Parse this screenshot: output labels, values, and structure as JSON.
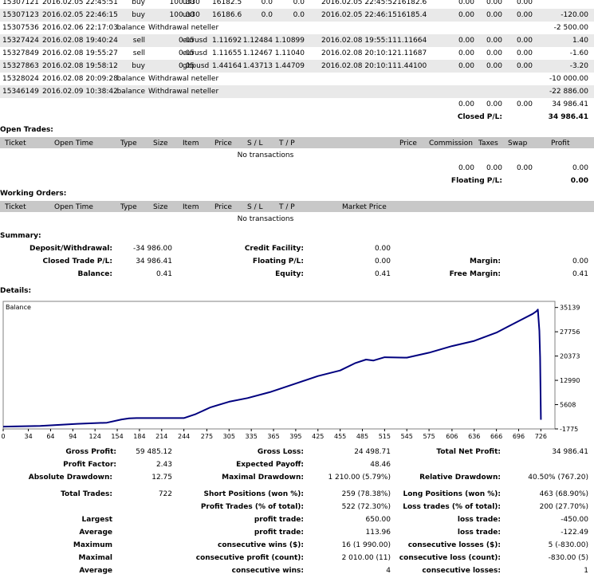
{
  "closed_rows": [
    {
      "ticket": "15307121",
      "open_time": "2016.02.05 22:45:51",
      "type": "buy",
      "size": "100.00",
      "item": "us30",
      "price": "16182.5",
      "sl": "0.0",
      "tp": "0.0",
      "close_time": "2016.02.05 22:45:52",
      "close_price": "16182.6",
      "commission": "0.00",
      "taxes": "0.00",
      "swap": "0.00",
      "profit": "",
      "shade": false
    },
    {
      "ticket": "15307123",
      "open_time": "2016.02.05 22:46:15",
      "type": "buy",
      "size": "100.00",
      "item": "us30",
      "price": "16186.6",
      "sl": "0.0",
      "tp": "0.0",
      "close_time": "2016.02.05 22:46:15",
      "close_price": "16185.4",
      "commission": "0.00",
      "taxes": "0.00",
      "swap": "0.00",
      "profit": "-120.00",
      "shade": true
    },
    {
      "ticket": "15307536",
      "open_time": "2016.02.06 22:17:03",
      "type": "balance",
      "size": "Withdrawal neteller",
      "item": "",
      "price": "",
      "sl": "",
      "tp": "",
      "close_time": "",
      "close_price": "",
      "commission": "",
      "taxes": "",
      "swap": "",
      "profit": "-2 500.00",
      "shade": false
    },
    {
      "ticket": "15327424",
      "open_time": "2016.02.08 19:40:24",
      "type": "sell",
      "size": "0.05",
      "item": "eurusd",
      "price": "1.11692",
      "sl": "1.12484",
      "tp": "1.10899",
      "close_time": "2016.02.08 19:55:11",
      "close_price": "1.11664",
      "commission": "0.00",
      "taxes": "0.00",
      "swap": "0.00",
      "profit": "1.40",
      "shade": true
    },
    {
      "ticket": "15327849",
      "open_time": "2016.02.08 19:55:27",
      "type": "sell",
      "size": "0.05",
      "item": "eurusd",
      "price": "1.11655",
      "sl": "1.12467",
      "tp": "1.11040",
      "close_time": "2016.02.08 20:10:12",
      "close_price": "1.11687",
      "commission": "0.00",
      "taxes": "0.00",
      "swap": "0.00",
      "profit": "-1.60",
      "shade": false
    },
    {
      "ticket": "15327863",
      "open_time": "2016.02.08 19:58:12",
      "type": "buy",
      "size": "0.05",
      "item": "gbpusd",
      "price": "1.44164",
      "sl": "1.43713",
      "tp": "1.44709",
      "close_time": "2016.02.08 20:10:11",
      "close_price": "1.44100",
      "commission": "0.00",
      "taxes": "0.00",
      "swap": "0.00",
      "profit": "-3.20",
      "shade": true
    },
    {
      "ticket": "15328024",
      "open_time": "2016.02.08 20:09:28",
      "type": "balance",
      "size": "Withdrawal neteller",
      "item": "",
      "price": "",
      "sl": "",
      "tp": "",
      "close_time": "",
      "close_price": "",
      "commission": "",
      "taxes": "",
      "swap": "",
      "profit": "-10 000.00",
      "shade": false
    },
    {
      "ticket": "15346149",
      "open_time": "2016.02.09 10:38:42",
      "type": "balance",
      "size": "Withdrawal neteller",
      "item": "",
      "price": "",
      "sl": "",
      "tp": "",
      "close_time": "",
      "close_price": "",
      "commission": "",
      "taxes": "",
      "swap": "",
      "profit": "-22 886.00",
      "shade": true
    }
  ],
  "closed_totals": {
    "commission": "0.00",
    "taxes": "0.00",
    "swap": "0.00",
    "profit": "34 986.41",
    "label": "Closed P/L:",
    "value": "34 986.41"
  },
  "open_trades": {
    "title": "Open Trades:",
    "headers": {
      "ticket": "Ticket",
      "open_time": "Open Time",
      "type": "Type",
      "size": "Size",
      "item": "Item",
      "price": "Price",
      "sl": "S / L",
      "tp": "T / P",
      "price2": "Price",
      "commission": "Commission",
      "taxes": "Taxes",
      "swap": "Swap",
      "profit": "Profit"
    },
    "empty": "No transactions",
    "totals": {
      "commission": "0.00",
      "taxes": "0.00",
      "swap": "0.00",
      "profit": "0.00"
    },
    "floating_label": "Floating P/L:",
    "floating_value": "0.00"
  },
  "working_orders": {
    "title": "Working Orders:",
    "headers": {
      "ticket": "Ticket",
      "open_time": "Open Time",
      "type": "Type",
      "size": "Size",
      "item": "Item",
      "price": "Price",
      "sl": "S / L",
      "tp": "T / P",
      "market_price": "Market Price"
    },
    "empty": "No transactions"
  },
  "summary": {
    "title": "Summary:",
    "deposit_label": "Deposit/Withdrawal:",
    "deposit_value": "-34 986.00",
    "credit_label": "Credit Facility:",
    "credit_value": "0.00",
    "closed_label": "Closed Trade P/L:",
    "closed_value": "34 986.41",
    "floating_label": "Floating P/L:",
    "floating_value": "0.00",
    "margin_label": "Margin:",
    "margin_value": "0.00",
    "balance_label": "Balance:",
    "balance_value": "0.41",
    "equity_label": "Equity:",
    "equity_value": "0.41",
    "free_margin_label": "Free Margin:",
    "free_margin_value": "0.41"
  },
  "details_title": "Details:",
  "chart_data": {
    "type": "line",
    "series": [
      {
        "name": "Balance"
      }
    ],
    "x": [
      0,
      50,
      100,
      140,
      160,
      170,
      180,
      190,
      200,
      244,
      260,
      280,
      305,
      330,
      360,
      395,
      425,
      455,
      475,
      490,
      500,
      515,
      545,
      575,
      606,
      636,
      666,
      696,
      715,
      720,
      722,
      724,
      725,
      726
    ],
    "y": [
      -1075,
      -875,
      -230,
      110,
      1100,
      1460,
      1510,
      1510,
      1510,
      1510,
      2740,
      4800,
      6500,
      7600,
      9400,
      12010,
      14300,
      16000,
      18200,
      19300,
      19020,
      20000,
      19900,
      21400,
      23400,
      24980,
      27500,
      31010,
      33200,
      34000,
      34500,
      28000,
      20000,
      1000
    ],
    "xlabel": "",
    "ylabel": "",
    "ylim": [
      -1775,
      37000
    ],
    "xlim": [
      0,
      745
    ],
    "x_ticks": [
      "0",
      "34",
      "64",
      "94",
      "124",
      "154",
      "184",
      "214",
      "244",
      "275",
      "305",
      "335",
      "365",
      "395",
      "425",
      "455",
      "485",
      "515",
      "545",
      "575",
      "606",
      "636",
      "666",
      "696",
      "726"
    ],
    "y_ticks": [
      "35139",
      "27756",
      "20373",
      "12990",
      "5608",
      "-1775"
    ],
    "color": "#00007f"
  },
  "stats": {
    "gross_profit_label": "Gross Profit:",
    "gross_profit": "59 485.12",
    "gross_loss_label": "Gross Loss:",
    "gross_loss": "24 498.71",
    "total_net_label": "Total Net Profit:",
    "total_net": "34 986.41",
    "profit_factor_label": "Profit Factor:",
    "profit_factor": "2.43",
    "expected_label": "Expected Payoff:",
    "expected": "48.46",
    "abs_dd_label": "Absolute Drawdown:",
    "abs_dd": "12.75",
    "max_dd_label": "Maximal Drawdown:",
    "max_dd": "1 210.00 (5.79%)",
    "rel_dd_label": "Relative Drawdown:",
    "rel_dd": "40.50% (767.20)",
    "total_trades_label": "Total Trades:",
    "total_trades": "722",
    "short_label": "Short Positions (won %):",
    "short": "259 (78.38%)",
    "long_label": "Long Positions (won %):",
    "long": "463 (68.90%)",
    "profit_trades_label": "Profit Trades (% of total):",
    "profit_trades": "522 (72.30%)",
    "loss_trades_label": "Loss trades (% of total):",
    "loss_trades": "200 (27.70%)",
    "largest_label": "Largest",
    "largest_pt_label": "profit trade:",
    "largest_pt": "650.00",
    "largest_lt_label": "loss trade:",
    "largest_lt": "-450.00",
    "average_label": "Average",
    "average_pt_label": "profit trade:",
    "average_pt": "113.96",
    "average_lt_label": "loss trade:",
    "average_lt": "-122.49",
    "maximum_label": "Maximum",
    "max_cw_label": "consecutive wins ($):",
    "max_cw": "16 (1 990.00)",
    "max_cl_label": "consecutive losses ($):",
    "max_cl": "5 (-830.00)",
    "maximal_label": "Maximal",
    "maximal_cp_label": "consecutive profit (count):",
    "maximal_cp": "2 010.00 (11)",
    "maximal_cl_label": "consecutive loss (count):",
    "maximal_cl": "-830.00 (5)",
    "average2_label": "Average",
    "avg_cw_label": "consecutive wins:",
    "avg_cw": "4",
    "avg_cl_label": "consecutive losses:",
    "avg_cl": "1"
  }
}
